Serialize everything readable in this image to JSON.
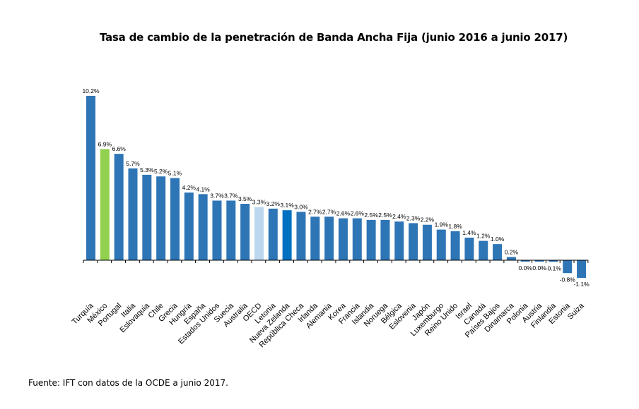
{
  "chart_data": {
    "type": "bar",
    "title": "Tasa de cambio de la penetración de Banda Ancha Fija (junio 2016 a junio 2017)",
    "xlabel": "",
    "ylabel": "",
    "ylim": [
      -1.5,
      11
    ],
    "grid": false,
    "legend": "none",
    "value_suffix": "%",
    "categories": [
      "Turquía",
      "México",
      "Portugal",
      "Italia",
      "Eslovaquia",
      "Chile",
      "Grecia",
      "Hungría",
      "España",
      "Estados Unidos",
      "Suecia",
      "Australia",
      "OECD",
      "Letonia",
      "Nueva Zelanda",
      "República Checa",
      "Irlanda",
      "Alemania",
      "Korea",
      "Francia",
      "Islandia",
      "Noruega",
      "Bélgica",
      "Eslovenia",
      "Japón",
      "Luxemburgo",
      "Reino Unido",
      "Israel",
      "Canadá",
      "Países Bajos",
      "Dinamarca",
      "Polonia",
      "Austria",
      "Finlandia",
      "Estonia",
      "Suiza"
    ],
    "values": [
      10.2,
      6.9,
      6.6,
      5.7,
      5.3,
      5.2,
      5.1,
      4.2,
      4.1,
      3.7,
      3.7,
      3.5,
      3.3,
      3.2,
      3.1,
      3.0,
      2.7,
      2.7,
      2.6,
      2.6,
      2.5,
      2.5,
      2.4,
      2.3,
      2.2,
      1.9,
      1.8,
      1.4,
      1.2,
      1.0,
      0.2,
      -0.04,
      -0.04,
      -0.1,
      -0.8,
      -1.1
    ],
    "data_labels": [
      "10.2%",
      "6.9%",
      "6.6%",
      "5.7%",
      "5.3%",
      "5.2%",
      "5.1%",
      "4.2%",
      "4.1%",
      "3.7%",
      "3.7%",
      "3.5%",
      "3.3%",
      "3.2%",
      "3.1%",
      "3.0%",
      "2.7%",
      "2.7%",
      "2.6%",
      "2.6%",
      "2.5%",
      "2.5%",
      "2.4%",
      "2.3%",
      "2.2%",
      "1.9%",
      "1.8%",
      "1.4%",
      "1.2%",
      "1.0%",
      "0.2%",
      "0.0%",
      "0.0%",
      "-0.1%",
      "-0.8%",
      "-1.1%"
    ],
    "colors": {
      "default": "#2E75B6",
      "highlight_mexico": "#92D050",
      "oecd": "#BDD7EE",
      "nueva_zelanda": "#0070C0"
    },
    "bar_colors": [
      "#2E75B6",
      "#92D050",
      "#2E75B6",
      "#2E75B6",
      "#2E75B6",
      "#2E75B6",
      "#2E75B6",
      "#2E75B6",
      "#2E75B6",
      "#2E75B6",
      "#2E75B6",
      "#2E75B6",
      "#BDD7EE",
      "#2E75B6",
      "#0070C0",
      "#2E75B6",
      "#2E75B6",
      "#2E75B6",
      "#2E75B6",
      "#2E75B6",
      "#2E75B6",
      "#2E75B6",
      "#2E75B6",
      "#2E75B6",
      "#2E75B6",
      "#2E75B6",
      "#2E75B6",
      "#2E75B6",
      "#2E75B6",
      "#2E75B6",
      "#2E75B6",
      "#2E75B6",
      "#2E75B6",
      "#2E75B6",
      "#2E75B6",
      "#2E75B6"
    ]
  },
  "source": "Fuente: IFT con datos de la OCDE a junio 2017."
}
